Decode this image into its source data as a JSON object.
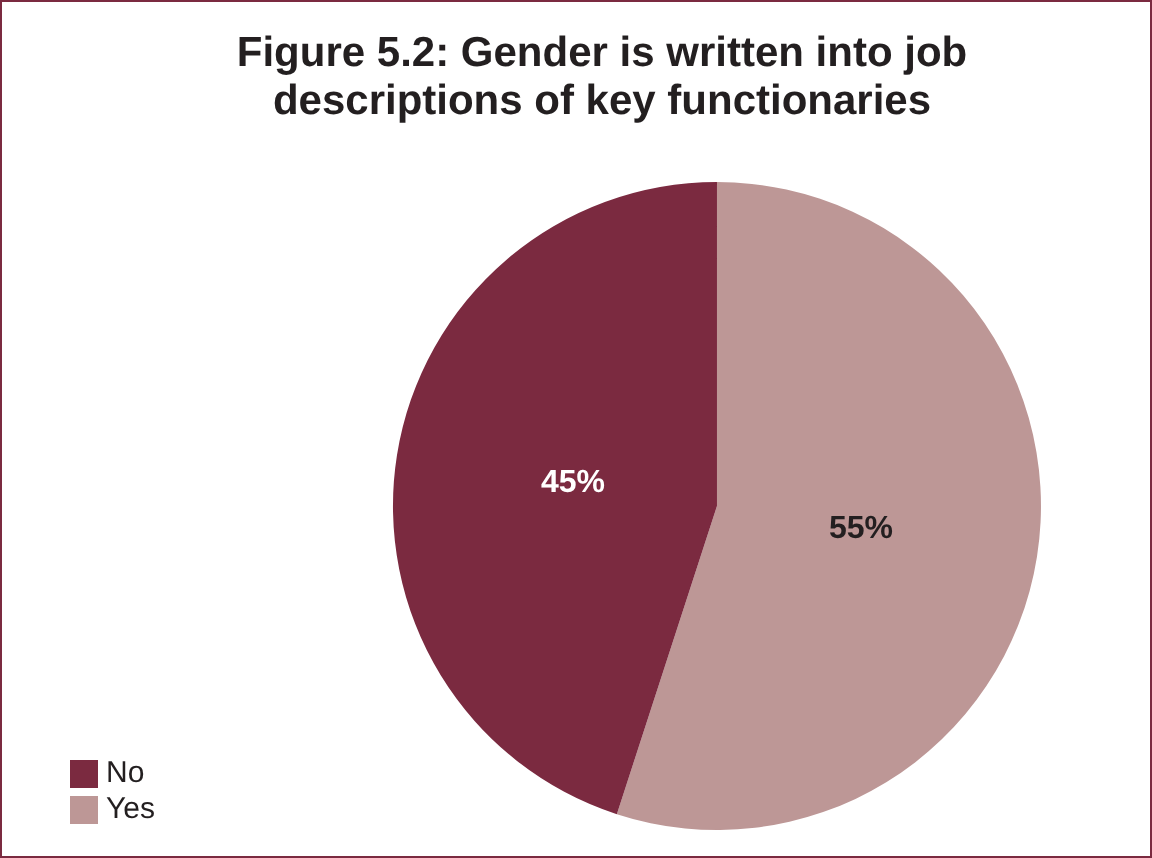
{
  "chart_data": {
    "type": "pie",
    "title": "Figure 5.2: Gender is written into job descriptions of key functionaries",
    "categories": [
      "Yes",
      "No"
    ],
    "values": [
      55,
      45
    ],
    "colors": [
      "#bd9796",
      "#7b2a40"
    ],
    "value_labels": [
      "55%",
      "45%"
    ],
    "legend": "bottom left"
  }
}
